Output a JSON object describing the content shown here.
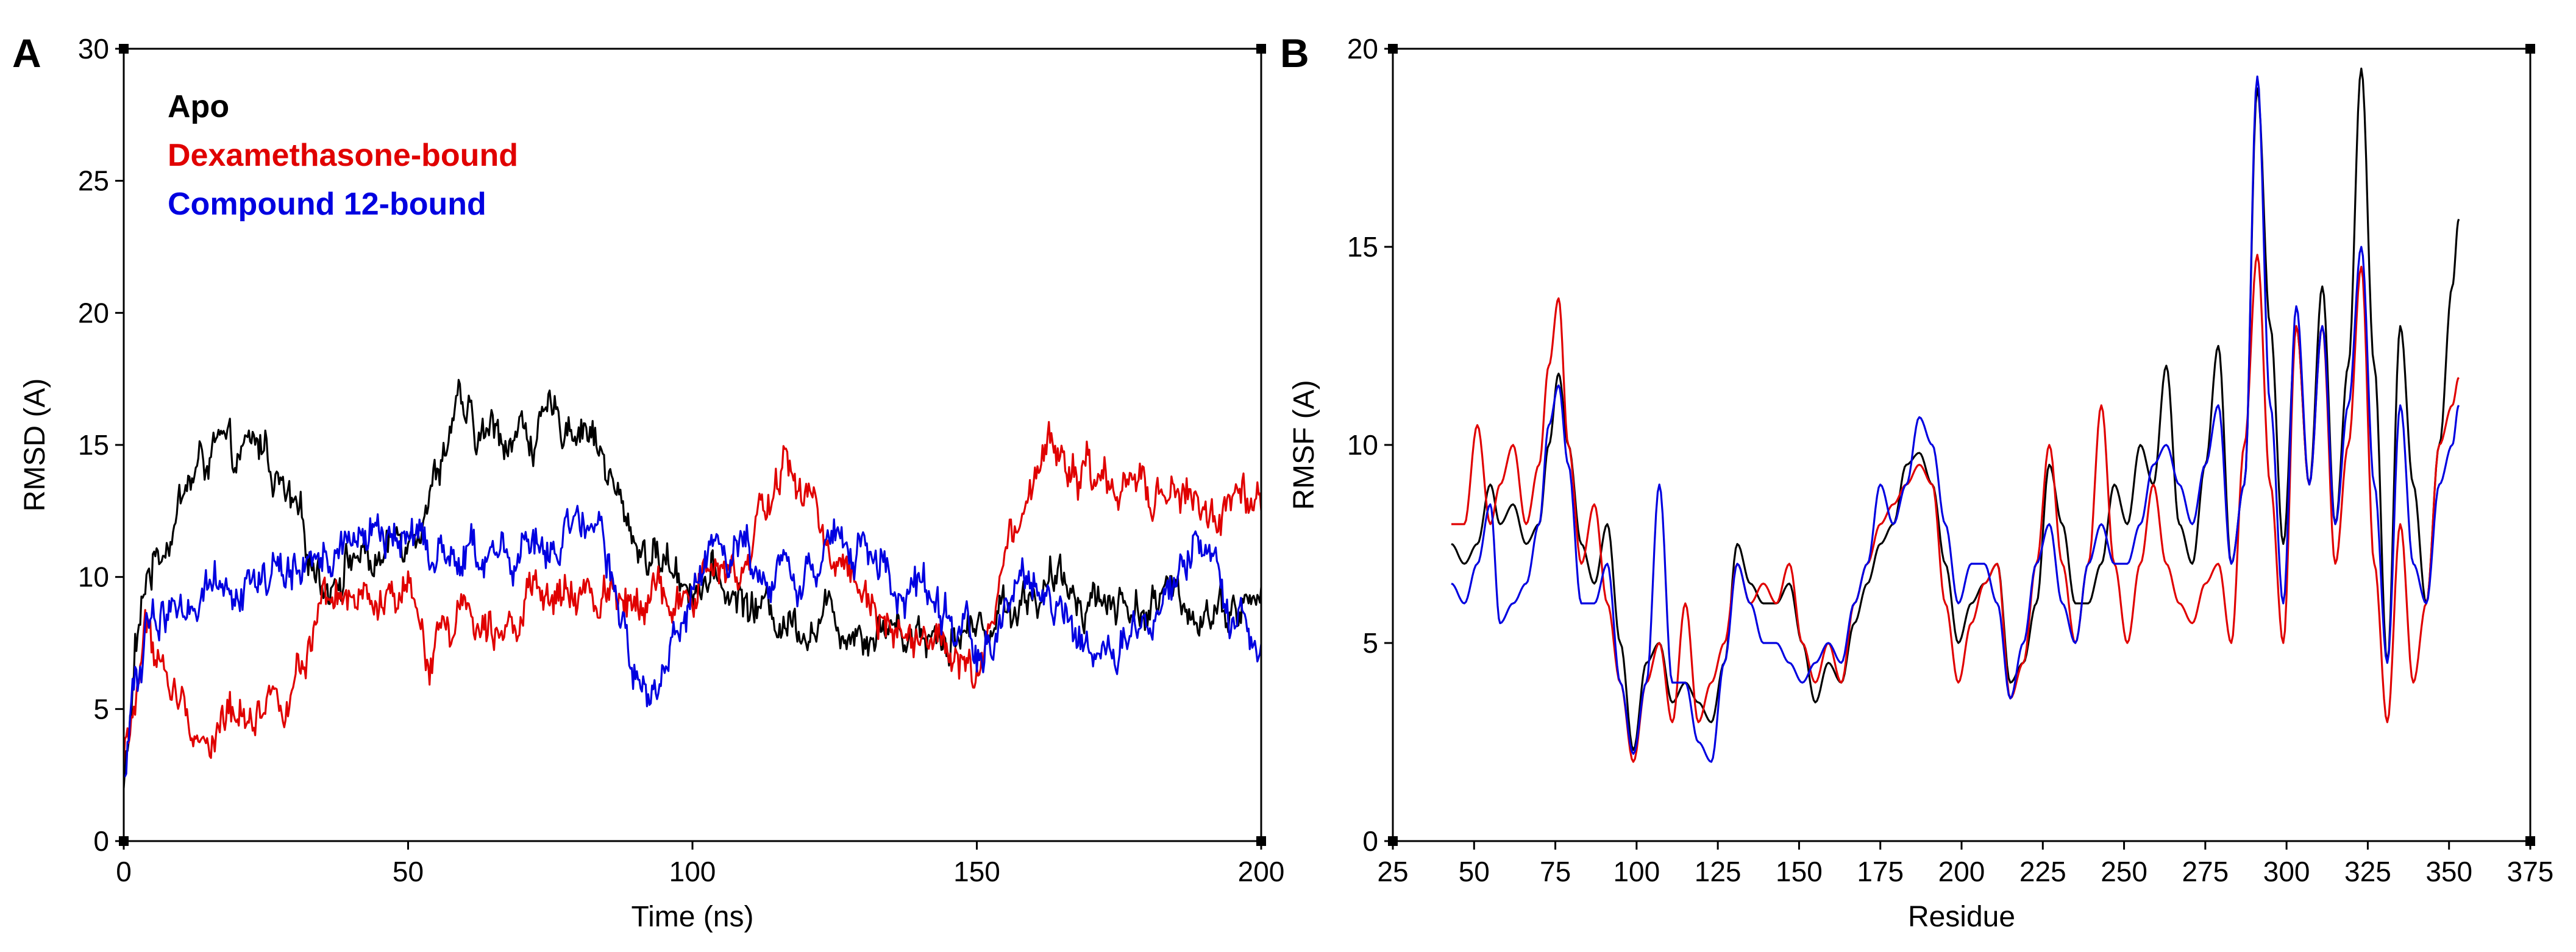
{
  "chart_data": [
    {
      "panel_label": "A",
      "type": "line",
      "xlabel": "Time (ns)",
      "ylabel": "RMSD (A)",
      "xlim": [
        0,
        200
      ],
      "ylim": [
        0,
        30
      ],
      "xticks": [
        0,
        50,
        100,
        150,
        200
      ],
      "yticks": [
        0,
        5,
        10,
        15,
        20,
        25,
        30
      ],
      "legend_position": "top-left",
      "noise": 0.45,
      "series": [
        {
          "name": "Apo",
          "color": "#000000",
          "x": [
            0,
            1,
            2,
            3,
            4,
            6,
            8,
            10,
            13,
            16,
            19,
            22,
            25,
            28,
            32,
            36,
            40,
            45,
            50,
            55,
            58,
            62,
            66,
            70,
            74,
            78,
            82,
            85,
            88,
            92,
            96,
            100,
            105,
            110,
            115,
            120,
            125,
            130,
            135,
            140,
            145,
            150,
            155,
            160,
            165,
            170,
            175,
            180,
            185,
            190,
            195,
            200
          ],
          "y": [
            2,
            4,
            7,
            8,
            10,
            11,
            12,
            13,
            14,
            15,
            14,
            14.5,
            15,
            13,
            11,
            10,
            11,
            10.5,
            12,
            14,
            16.5,
            15,
            15.5,
            15.5,
            15.5,
            16,
            16,
            14,
            12,
            11,
            10.5,
            10,
            9.5,
            9,
            8.5,
            8.5,
            8.5,
            8.3,
            8.3,
            8,
            8,
            8,
            9,
            9.5,
            9.5,
            9.5,
            9,
            9,
            9,
            9,
            9,
            9
          ]
        },
        {
          "name": "Dexamethasone-bound",
          "color": "#e00000",
          "x": [
            0,
            1,
            2,
            3,
            4,
            6,
            8,
            10,
            13,
            16,
            20,
            25,
            30,
            35,
            40,
            45,
            50,
            53,
            56,
            60,
            65,
            70,
            75,
            80,
            85,
            88,
            92,
            96,
            100,
            103,
            106,
            110,
            113,
            116,
            120,
            125,
            130,
            135,
            140,
            145,
            150,
            153,
            156,
            160,
            163,
            166,
            170,
            175,
            180,
            185,
            190,
            195,
            200
          ],
          "y": [
            3,
            4,
            5,
            7,
            8,
            7,
            6,
            5,
            4,
            4,
            5,
            5.5,
            6,
            8,
            9,
            8.5,
            9,
            7,
            8,
            9,
            9,
            9,
            9,
            9,
            9.5,
            9.5,
            10,
            9,
            9,
            10,
            10,
            10,
            13,
            14,
            13,
            11,
            10,
            8.5,
            8,
            7,
            6,
            8,
            11,
            13,
            15,
            14,
            13.5,
            13,
            13,
            13,
            12.5,
            12.5,
            12
          ]
        },
        {
          "name": "Compound  12-bound",
          "color": "#0000e0",
          "x": [
            0,
            1,
            2,
            3,
            4,
            6,
            8,
            10,
            13,
            16,
            20,
            25,
            30,
            35,
            40,
            45,
            50,
            55,
            60,
            65,
            70,
            75,
            80,
            85,
            88,
            90,
            92,
            95,
            98,
            100,
            105,
            110,
            115,
            120,
            125,
            130,
            135,
            140,
            145,
            150,
            155,
            160,
            163,
            166,
            170,
            175,
            180,
            185,
            188,
            190,
            195,
            200
          ],
          "y": [
            2,
            4,
            6,
            7,
            8,
            8,
            9,
            9,
            9.5,
            10,
            10,
            10,
            10,
            11,
            11,
            11.5,
            11.5,
            11,
            11,
            10.5,
            11,
            11,
            11.5,
            10.5,
            8,
            6,
            5,
            6,
            9,
            10,
            11,
            11,
            10.5,
            10.5,
            11,
            11,
            10,
            9.5,
            8.5,
            7,
            9,
            10,
            9,
            8,
            7,
            7.5,
            7,
            10,
            11,
            10,
            8,
            8
          ]
        }
      ],
      "title": ""
    },
    {
      "panel_label": "B",
      "type": "line",
      "xlabel": "Residue",
      "ylabel": "RMSF (A)",
      "xlim": [
        25,
        375
      ],
      "ylim": [
        0,
        20
      ],
      "xticks": [
        25,
        50,
        75,
        100,
        125,
        150,
        175,
        200,
        225,
        250,
        275,
        300,
        325,
        350,
        375
      ],
      "yticks": [
        0,
        5,
        10,
        15,
        20
      ],
      "noise": 0,
      "series": [
        {
          "name": "Apo",
          "color": "#000000",
          "x": [
            43,
            47,
            51,
            55,
            58,
            62,
            66,
            70,
            73,
            76,
            79,
            83,
            87,
            91,
            95,
            99,
            103,
            107,
            111,
            115,
            119,
            123,
            127,
            131,
            135,
            139,
            143,
            147,
            151,
            155,
            159,
            163,
            167,
            171,
            175,
            179,
            183,
            187,
            191,
            195,
            199,
            203,
            207,
            211,
            215,
            219,
            223,
            227,
            231,
            235,
            239,
            243,
            247,
            251,
            255,
            259,
            263,
            267,
            271,
            275,
            279,
            283,
            287,
            291,
            295,
            299,
            303,
            307,
            311,
            315,
            319,
            323,
            327,
            331,
            335,
            339,
            343,
            347,
            351,
            353
          ],
          "y": [
            7.5,
            7,
            7.5,
            9,
            8,
            8.5,
            7.5,
            8,
            10,
            11.8,
            10,
            7.5,
            6.5,
            8,
            5,
            2.3,
            4.5,
            5,
            3.5,
            4,
            3.5,
            3,
            4.5,
            7.5,
            6.5,
            6,
            6,
            6.5,
            5,
            3.5,
            4.5,
            4,
            5.5,
            6.5,
            7.5,
            8,
            9.5,
            9.8,
            9,
            7,
            5,
            6,
            6.5,
            7,
            4,
            4.5,
            6,
            9.5,
            8,
            6,
            6,
            7,
            9,
            8,
            10,
            9,
            12,
            8,
            7,
            9.5,
            12.5,
            7,
            9,
            19,
            13,
            7.5,
            13,
            9,
            14,
            8,
            12,
            19.5,
            12,
            4.5,
            13,
            9,
            6,
            10,
            14,
            15.7
          ]
        },
        {
          "name": "Dexamethasone-bound",
          "color": "#e00000",
          "x": [
            43,
            47,
            51,
            55,
            58,
            62,
            66,
            70,
            73,
            76,
            79,
            83,
            87,
            91,
            95,
            99,
            103,
            107,
            111,
            115,
            119,
            123,
            127,
            131,
            135,
            139,
            143,
            147,
            151,
            155,
            159,
            163,
            167,
            171,
            175,
            179,
            183,
            187,
            191,
            195,
            199,
            203,
            207,
            211,
            215,
            219,
            223,
            227,
            231,
            235,
            239,
            243,
            247,
            251,
            255,
            259,
            263,
            267,
            271,
            275,
            279,
            283,
            287,
            291,
            295,
            299,
            303,
            307,
            311,
            315,
            319,
            323,
            327,
            331,
            335,
            339,
            343,
            347,
            351,
            353
          ],
          "y": [
            8,
            8,
            10.5,
            8,
            9,
            10,
            8,
            9.5,
            12,
            13.7,
            10,
            7,
            8.5,
            6,
            4,
            2,
            4,
            5,
            3,
            6,
            3,
            4,
            5,
            7,
            6,
            6.5,
            6,
            7,
            5,
            4,
            5,
            4,
            6,
            7,
            8,
            8.5,
            9,
            9.5,
            9,
            6,
            4,
            5.5,
            6.5,
            7,
            3.6,
            4.5,
            7,
            10,
            7,
            5,
            7,
            11,
            7,
            5,
            7,
            9,
            7,
            6,
            5.5,
            6.5,
            7,
            5,
            10,
            14.8,
            9,
            5,
            13,
            9,
            13,
            7,
            10,
            14.5,
            7,
            3,
            8,
            4,
            6,
            10,
            11,
            11.7
          ]
        },
        {
          "name": "Compound  12-bound",
          "color": "#0000e0",
          "x": [
            43,
            47,
            51,
            55,
            58,
            62,
            66,
            70,
            73,
            76,
            79,
            83,
            87,
            91,
            95,
            99,
            103,
            107,
            111,
            115,
            119,
            123,
            127,
            131,
            135,
            139,
            143,
            147,
            151,
            155,
            159,
            163,
            167,
            171,
            175,
            179,
            183,
            187,
            191,
            195,
            199,
            203,
            207,
            211,
            215,
            219,
            223,
            227,
            231,
            235,
            239,
            243,
            247,
            251,
            255,
            259,
            263,
            267,
            271,
            275,
            279,
            283,
            287,
            291,
            295,
            299,
            303,
            307,
            311,
            315,
            319,
            323,
            327,
            331,
            335,
            339,
            343,
            347,
            351,
            353
          ],
          "y": [
            6.5,
            6,
            7,
            8.5,
            5.5,
            6,
            6.5,
            8,
            10.5,
            11.5,
            9.5,
            6,
            6,
            7,
            4,
            2.2,
            4,
            9,
            4,
            4,
            2.5,
            2,
            4.5,
            7,
            6,
            5,
            5,
            4.5,
            4,
            4.5,
            5,
            4.5,
            6,
            7,
            9,
            8,
            9,
            10.7,
            10,
            8,
            6,
            7,
            7,
            6,
            3.6,
            5,
            7,
            8,
            6,
            5,
            7,
            8,
            7,
            7,
            8,
            9.5,
            10,
            9,
            8,
            9.5,
            11,
            7,
            9,
            19.3,
            11,
            6,
            13.5,
            9,
            13,
            8,
            11,
            15,
            9,
            4.5,
            11,
            7,
            6,
            9,
            10,
            11
          ]
        }
      ],
      "title": ""
    }
  ]
}
